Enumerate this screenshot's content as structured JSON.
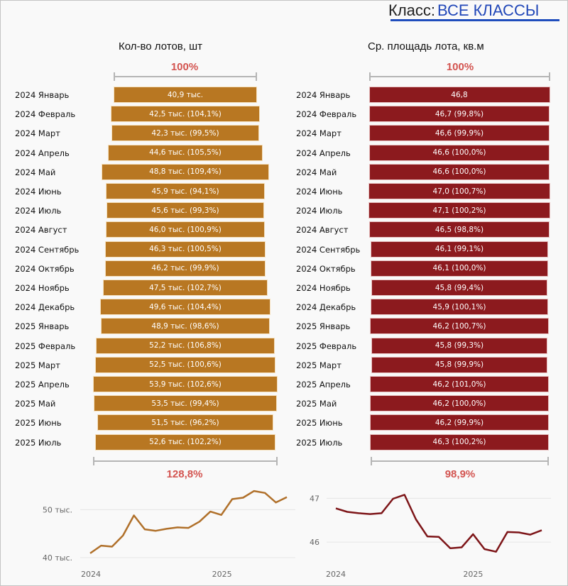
{
  "header": {
    "class_label": "Класс:",
    "class_value": "ВСЕ КЛАССЫ"
  },
  "months": [
    "2024 Январь",
    "2024 Февраль",
    "2024 Март",
    "2024 Апрель",
    "2024 Май",
    "2024 Июнь",
    "2024 Июль",
    "2024 Август",
    "2024 Сентябрь",
    "2024 Октябрь",
    "2024 Ноябрь",
    "2024 Декабрь",
    "2025 Январь",
    "2025 Февраль",
    "2025 Март",
    "2025 Апрель",
    "2025 Май",
    "2025 Июнь",
    "2025 Июль"
  ],
  "left_panel": {
    "title": "Кол-во лотов, шт",
    "top_pct": "100%",
    "bottom_pct": "128,8%",
    "bar_labels": [
      "40,9 тыс.",
      "42,5 тыс. (104,1%)",
      "42,3 тыс. (99,5%)",
      "44,6 тыс. (105,5%)",
      "48,8 тыс. (109,4%)",
      "45,9 тыс. (94,1%)",
      "45,6 тыс. (99,3%)",
      "46,0 тыс. (100,9%)",
      "46,3 тыс. (100,5%)",
      "46,2 тыс. (99,9%)",
      "47,5 тыс. (102,7%)",
      "49,6 тыс. (104,4%)",
      "48,9 тыс. (98,6%)",
      "52,2 тыс. (106,8%)",
      "52,5 тыс. (100,6%)",
      "53,9 тыс. (102,6%)",
      "53,5 тыс. (99,4%)",
      "51,5 тыс. (96,2%)",
      "52,6 тыс. (102,2%)"
    ],
    "color": "#b87722"
  },
  "right_panel": {
    "title": "Ср. площадь лота, кв.м",
    "top_pct": "100%",
    "bottom_pct": "98,9%",
    "bar_labels": [
      "46,8",
      "46,7 (99,8%)",
      "46,6 (99,9%)",
      "46,6 (100,0%)",
      "46,6 (100,0%)",
      "47,0 (100,7%)",
      "47,1 (100,2%)",
      "46,5 (98,8%)",
      "46,1 (99,1%)",
      "46,1 (100,0%)",
      "45,8 (99,4%)",
      "45,9 (100,1%)",
      "46,2 (100,7%)",
      "45,8 (99,3%)",
      "45,8 (99,9%)",
      "46,2 (101,0%)",
      "46,2 (100,0%)",
      "46,2 (99,9%)",
      "46,3 (100,2%)"
    ],
    "color": "#8c1a1e"
  },
  "chart_data": [
    {
      "type": "bar",
      "orientation": "horizontal-centered",
      "title": "Кол-во лотов, шт",
      "categories": [
        "2024 Январь",
        "2024 Февраль",
        "2024 Март",
        "2024 Апрель",
        "2024 Май",
        "2024 Июнь",
        "2024 Июль",
        "2024 Август",
        "2024 Сентябрь",
        "2024 Октябрь",
        "2024 Ноябрь",
        "2024 Декабрь",
        "2025 Январь",
        "2025 Февраль",
        "2025 Март",
        "2025 Апрель",
        "2025 Май",
        "2025 Июнь",
        "2025 Июль"
      ],
      "values": [
        40.9,
        42.5,
        42.3,
        44.6,
        48.8,
        45.9,
        45.6,
        46.0,
        46.3,
        46.2,
        47.5,
        49.6,
        48.9,
        52.2,
        52.5,
        53.9,
        53.5,
        51.5,
        52.6
      ],
      "unit": "тыс.",
      "mom_pct": [
        null,
        104.1,
        99.5,
        105.5,
        109.4,
        94.1,
        99.3,
        100.9,
        100.5,
        99.9,
        102.7,
        104.4,
        98.6,
        106.8,
        100.6,
        102.6,
        99.4,
        96.2,
        102.2
      ],
      "start_label": "100%",
      "end_label": "128,8%"
    },
    {
      "type": "bar",
      "orientation": "horizontal-centered",
      "title": "Ср. площадь лота, кв.м",
      "categories": [
        "2024 Январь",
        "2024 Февраль",
        "2024 Март",
        "2024 Апрель",
        "2024 Май",
        "2024 Июнь",
        "2024 Июль",
        "2024 Август",
        "2024 Сентябрь",
        "2024 Октябрь",
        "2024 Ноябрь",
        "2024 Декабрь",
        "2025 Январь",
        "2025 Февраль",
        "2025 Март",
        "2025 Апрель",
        "2025 Май",
        "2025 Июнь",
        "2025 Июль"
      ],
      "values": [
        46.8,
        46.7,
        46.6,
        46.6,
        46.6,
        47.0,
        47.1,
        46.5,
        46.1,
        46.1,
        45.8,
        45.9,
        46.2,
        45.8,
        45.8,
        46.2,
        46.2,
        46.2,
        46.3
      ],
      "mom_pct": [
        null,
        99.8,
        99.9,
        100.0,
        100.0,
        100.7,
        100.2,
        98.8,
        99.1,
        100.0,
        99.4,
        100.1,
        100.7,
        99.3,
        99.9,
        101.0,
        100.0,
        99.9,
        100.2
      ],
      "start_label": "100%",
      "end_label": "98,9%"
    },
    {
      "type": "line",
      "title": "",
      "x": [
        "2024-01",
        "2024-02",
        "2024-03",
        "2024-04",
        "2024-05",
        "2024-06",
        "2024-07",
        "2024-08",
        "2024-09",
        "2024-10",
        "2024-11",
        "2024-12",
        "2025-01",
        "2025-02",
        "2025-03",
        "2025-04",
        "2025-05",
        "2025-06",
        "2025-07"
      ],
      "series": [
        {
          "name": "Кол-во лотов",
          "values": [
            40.9,
            42.5,
            42.3,
            44.6,
            48.8,
            45.9,
            45.6,
            46.0,
            46.3,
            46.2,
            47.5,
            49.6,
            48.9,
            52.2,
            52.5,
            53.9,
            53.5,
            51.5,
            52.6
          ]
        }
      ],
      "x_ticks": [
        "2024",
        "2025"
      ],
      "y_ticks": [
        "40 тыс.",
        "50 тыс."
      ],
      "ylim": [
        40,
        54.5
      ],
      "grid": true,
      "color": "#b0702a"
    },
    {
      "type": "line",
      "title": "",
      "x": [
        "2024-01",
        "2024-02",
        "2024-03",
        "2024-04",
        "2024-05",
        "2024-06",
        "2024-07",
        "2024-08",
        "2024-09",
        "2024-10",
        "2024-11",
        "2024-12",
        "2025-01",
        "2025-02",
        "2025-03",
        "2025-04",
        "2025-05",
        "2025-06",
        "2025-07"
      ],
      "series": [
        {
          "name": "Ср. площадь лота",
          "values": [
            46.77,
            46.69,
            46.66,
            46.64,
            46.66,
            46.99,
            47.08,
            46.52,
            46.13,
            46.12,
            45.86,
            45.88,
            46.18,
            45.84,
            45.78,
            46.23,
            46.22,
            46.17,
            46.27
          ]
        }
      ],
      "x_ticks": [
        "2024",
        "2025"
      ],
      "y_ticks": [
        "46",
        "47"
      ],
      "ylim": [
        45.5,
        47.2
      ],
      "grid": true,
      "color": "#7d1518"
    }
  ]
}
